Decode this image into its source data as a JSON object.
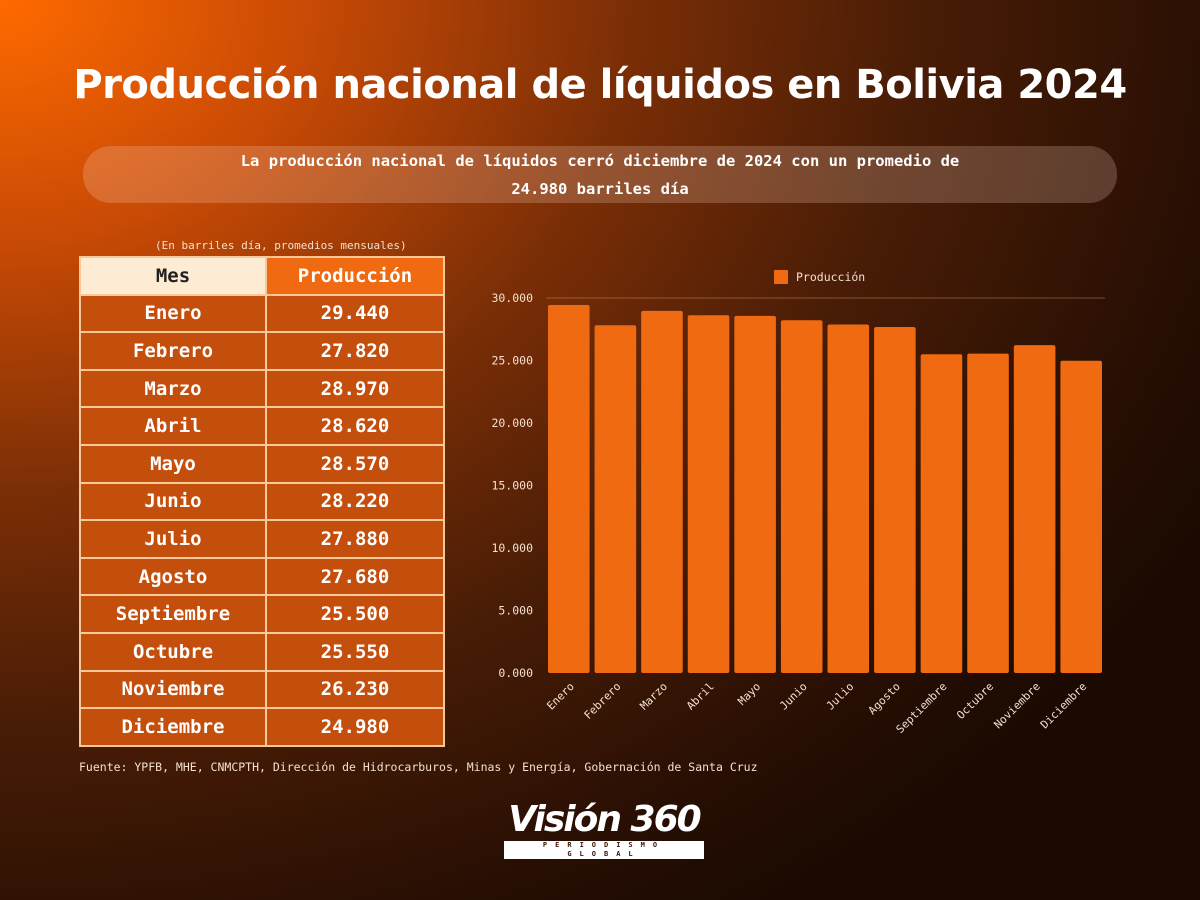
{
  "title": "Producción nacional de líquidos en Bolivia  2024",
  "subtitle": "La producción nacional de líquidos cerró diciembre de 2024 con un promedio de 24.980 barriles día",
  "table": {
    "units_note": "(En barriles día, promedios mensuales)",
    "headers": [
      "Mes",
      "Producción"
    ],
    "rows": [
      [
        "Enero",
        "29.440"
      ],
      [
        "Febrero",
        "27.820"
      ],
      [
        "Marzo",
        "28.970"
      ],
      [
        "Abril",
        "28.620"
      ],
      [
        "Mayo",
        "28.570"
      ],
      [
        "Junio",
        "28.220"
      ],
      [
        "Julio",
        "27.880"
      ],
      [
        "Agosto",
        "27.680"
      ],
      [
        "Septiembre",
        "25.500"
      ],
      [
        "Octubre",
        "25.550"
      ],
      [
        "Noviembre",
        "26.230"
      ],
      [
        "Diciembre",
        "24.980"
      ]
    ]
  },
  "source": "Fuente: YPFB, MHE, CNMCPTH, Dirección de Hidrocarburos, Minas y Energía, Gobernación de Santa Cruz",
  "logo": {
    "name": "Visión 360",
    "tagline": "PERIODISMO GLOBAL"
  },
  "chart_data": {
    "type": "bar",
    "categories": [
      "Enero",
      "Febrero",
      "Marzo",
      "Abril",
      "Mayo",
      "Junio",
      "Julio",
      "Agosto",
      "Septiembre",
      "Octubre",
      "Noviembre",
      "Diciembre"
    ],
    "series": [
      {
        "name": "Producción",
        "values": [
          29440,
          27820,
          28970,
          28620,
          28570,
          28220,
          27880,
          27680,
          25500,
          25550,
          26230,
          24980
        ],
        "color": "#ef6a10"
      }
    ],
    "yticks": [
      "0.000",
      "5.000",
      "10.000",
      "15.000",
      "20.000",
      "25.000",
      "30.000"
    ],
    "ylim": [
      0,
      30000
    ],
    "legend": "top-center",
    "grid": false
  }
}
